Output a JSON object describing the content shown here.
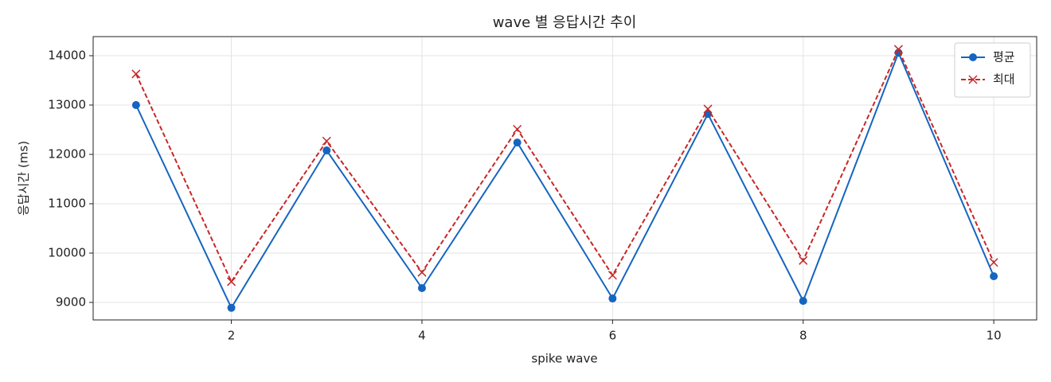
{
  "chart_data": {
    "type": "line",
    "title": "wave 별 응답시간 추이",
    "x_label": "spike wave",
    "y_label": "응답시간 (ms)",
    "x": [
      1,
      2,
      3,
      4,
      5,
      6,
      7,
      8,
      9,
      10
    ],
    "series": [
      {
        "name": "평균",
        "color": "#1565c0",
        "marker": "o",
        "dash": false,
        "values": [
          13000,
          8890,
          12080,
          9290,
          12240,
          9080,
          12820,
          9030,
          14060,
          9530
        ]
      },
      {
        "name": "최대",
        "color": "#c62828",
        "marker": "x",
        "dash": true,
        "values": [
          13630,
          9420,
          12270,
          9610,
          12510,
          9550,
          12920,
          9850,
          14130,
          9810
        ]
      }
    ],
    "xlim": [
      0.55,
      10.45
    ],
    "ylim": [
      8645,
      14387
    ],
    "xticks": [
      2,
      4,
      6,
      8,
      10
    ],
    "yticks": [
      9000,
      10000,
      11000,
      12000,
      13000,
      14000
    ],
    "grid": true,
    "legend": "upper right"
  }
}
